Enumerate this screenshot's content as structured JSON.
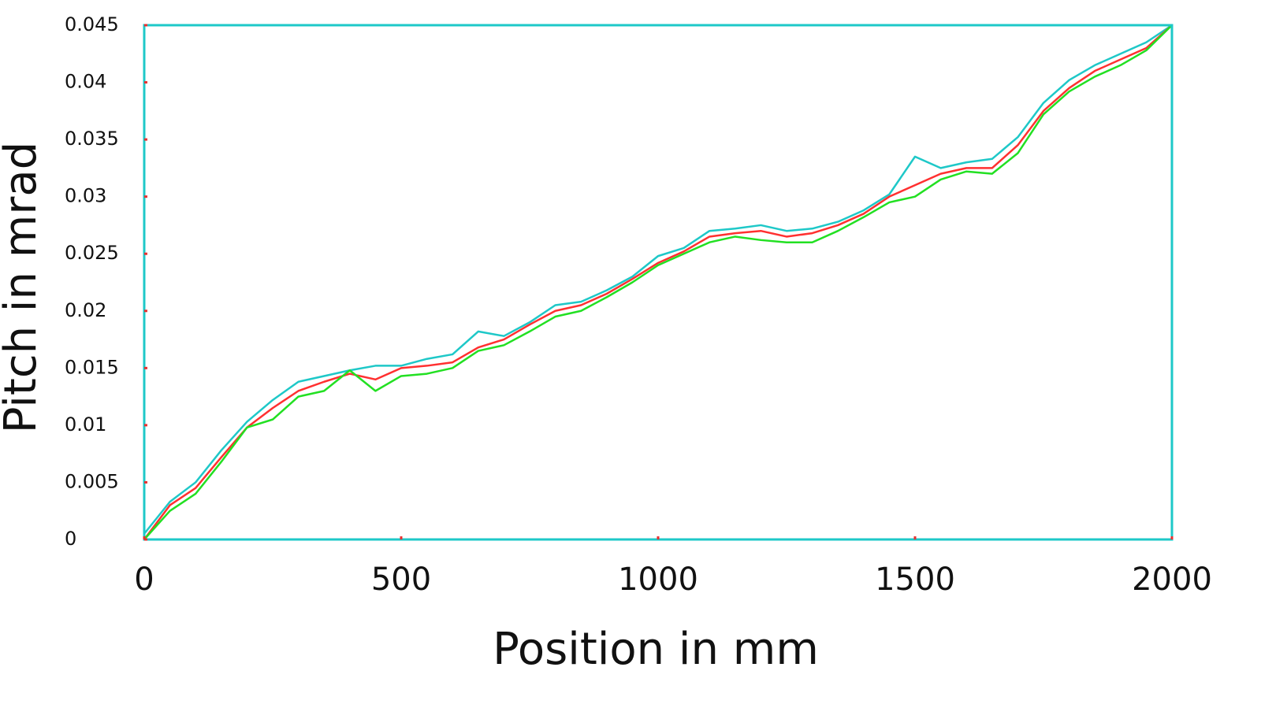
{
  "chart_data": {
    "type": "line",
    "xlabel": "Position in mm",
    "ylabel": "Pitch in mrad",
    "x": [
      0,
      50,
      100,
      150,
      200,
      250,
      300,
      350,
      400,
      450,
      500,
      550,
      600,
      650,
      700,
      750,
      800,
      850,
      900,
      950,
      1000,
      1050,
      1100,
      1150,
      1200,
      1250,
      1300,
      1350,
      1400,
      1450,
      1500,
      1550,
      1600,
      1650,
      1700,
      1750,
      1800,
      1850,
      1900,
      1950,
      2000
    ],
    "series": [
      {
        "color": "#1ec8c8",
        "values": [
          0.0005,
          0.0033,
          0.005,
          0.0078,
          0.0103,
          0.0122,
          0.0138,
          0.0143,
          0.0148,
          0.0152,
          0.0152,
          0.0158,
          0.0162,
          0.0182,
          0.0178,
          0.019,
          0.0205,
          0.0208,
          0.0218,
          0.023,
          0.0248,
          0.0255,
          0.027,
          0.0272,
          0.0275,
          0.027,
          0.0272,
          0.0278,
          0.0288,
          0.0302,
          0.0335,
          0.0325,
          0.033,
          0.0333,
          0.0352,
          0.0382,
          0.0402,
          0.0415,
          0.0425,
          0.0435,
          0.045
        ]
      },
      {
        "color": "#ff3030",
        "values": [
          0,
          0.003,
          0.0045,
          0.0072,
          0.0098,
          0.0115,
          0.013,
          0.0138,
          0.0145,
          0.014,
          0.015,
          0.0152,
          0.0155,
          0.0168,
          0.0175,
          0.0188,
          0.02,
          0.0205,
          0.0215,
          0.0228,
          0.0242,
          0.0252,
          0.0265,
          0.0268,
          0.027,
          0.0265,
          0.0268,
          0.0275,
          0.0285,
          0.03,
          0.031,
          0.032,
          0.0325,
          0.0325,
          0.0345,
          0.0375,
          0.0395,
          0.041,
          0.042,
          0.043,
          0.045
        ]
      },
      {
        "color": "#22e022",
        "values": [
          0,
          0.0025,
          0.004,
          0.0068,
          0.0098,
          0.0105,
          0.0125,
          0.013,
          0.0148,
          0.013,
          0.0143,
          0.0145,
          0.015,
          0.0165,
          0.017,
          0.0182,
          0.0195,
          0.02,
          0.0212,
          0.0225,
          0.024,
          0.025,
          0.026,
          0.0265,
          0.0262,
          0.026,
          0.026,
          0.027,
          0.0282,
          0.0295,
          0.03,
          0.0315,
          0.0322,
          0.032,
          0.0338,
          0.0372,
          0.0392,
          0.0405,
          0.0415,
          0.0428,
          0.045
        ]
      }
    ],
    "xlim": [
      0,
      2000
    ],
    "xticks": [
      0,
      500,
      1000,
      1500,
      2000
    ],
    "ylim": [
      0,
      0.045
    ],
    "yticks": [
      0,
      0.005,
      0.01,
      0.015,
      0.02,
      0.025,
      0.03,
      0.035,
      0.04,
      0.045
    ]
  }
}
